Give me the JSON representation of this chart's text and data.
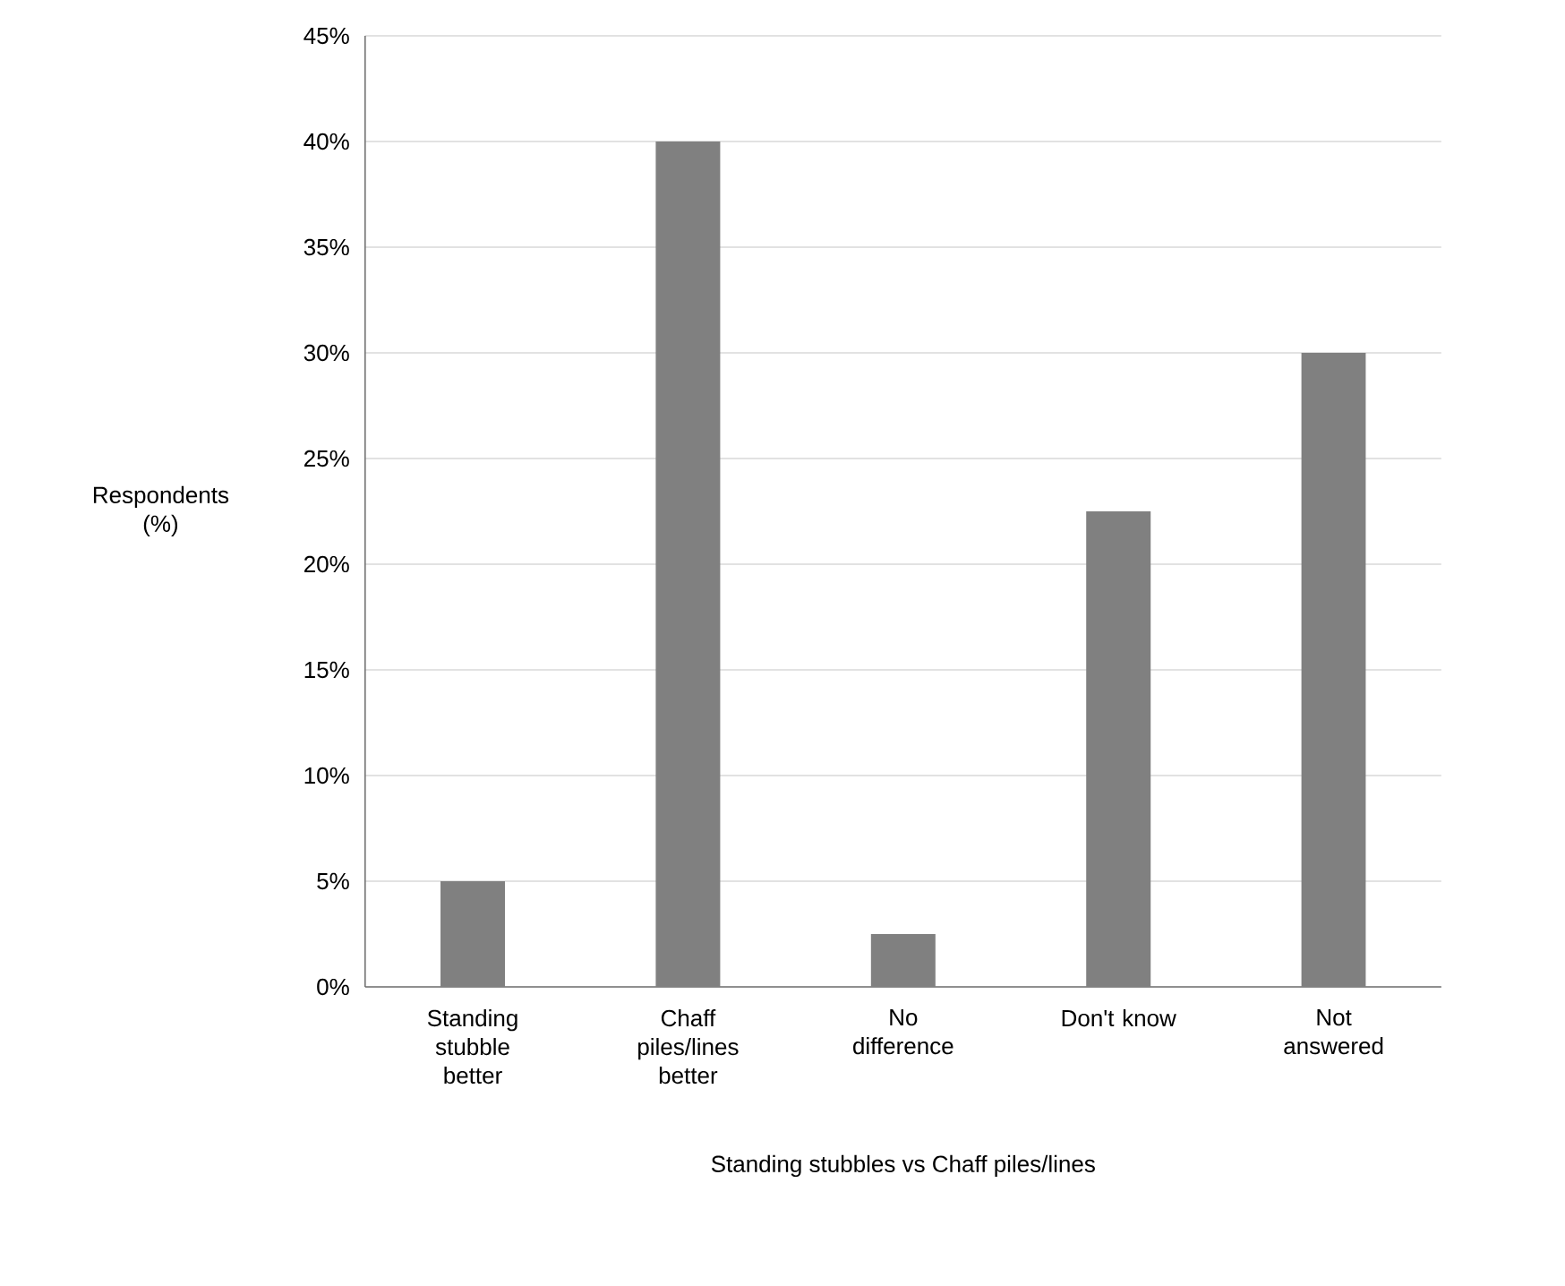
{
  "chart_data": {
    "type": "bar",
    "xlabel": "Standing stubbles vs Chaff piles/lines",
    "ylabel": "Respondents (%)",
    "categories": [
      "Standing stubble better",
      "Chaff piles/lines better",
      "No difference",
      "Don't know",
      "Not answered"
    ],
    "values": [
      5,
      40,
      2.5,
      22.5,
      30
    ],
    "color": "#808080",
    "ylim": [
      0,
      45
    ],
    "yticks": [
      {
        "value": 0,
        "label": "0%"
      },
      {
        "value": 5,
        "label": "5%"
      },
      {
        "value": 10,
        "label": "10%"
      },
      {
        "value": 15,
        "label": "15%"
      },
      {
        "value": 20,
        "label": "20%"
      },
      {
        "value": 25,
        "label": "25%"
      },
      {
        "value": 30,
        "label": "30%"
      },
      {
        "value": 35,
        "label": "35%"
      },
      {
        "value": 40,
        "label": "40%"
      },
      {
        "value": 45,
        "label": "45%"
      }
    ],
    "grid": "y"
  }
}
